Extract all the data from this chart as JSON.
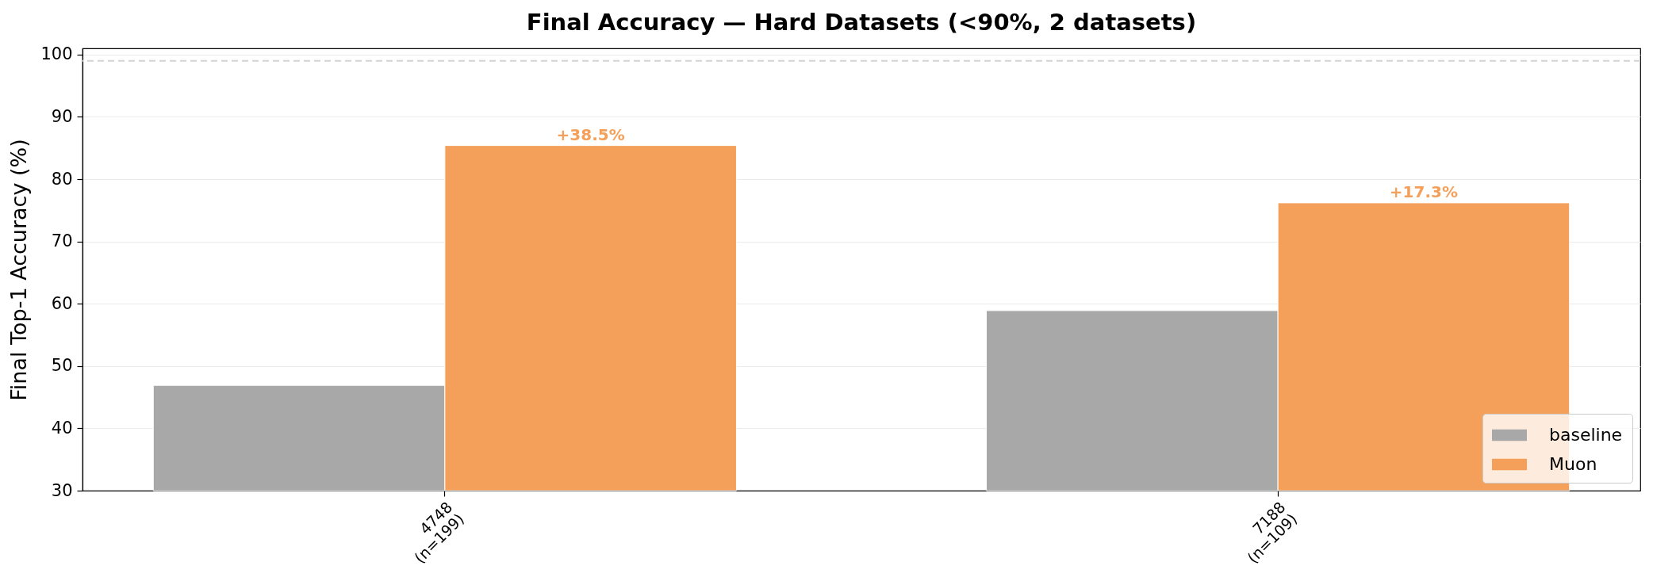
{
  "chart_data": {
    "type": "bar",
    "title": "Final Accuracy — Hard Datasets (<90%, 2 datasets)",
    "ylabel": "Final Top-1 Accuracy (%)",
    "categories": [
      "4748\n(n=199)",
      "7188\n(n=109)"
    ],
    "series": [
      {
        "name": "baseline",
        "color": "#a8a8a8",
        "values": [
          46.9,
          58.9
        ]
      },
      {
        "name": "Muon",
        "color": "#f5a05a",
        "values": [
          85.4,
          76.2
        ]
      }
    ],
    "ylim": [
      30,
      101
    ],
    "yticks": [
      30,
      40,
      50,
      60,
      70,
      80,
      90,
      100
    ],
    "grid": "y",
    "legend": "bottom right",
    "ref_lines": [
      {
        "axis": "y",
        "value": 99,
        "color": "#d3d3d3",
        "line_style": "dashed"
      }
    ],
    "annotations": [
      {
        "text": "+38.5%",
        "y": 85.4
      },
      {
        "text": "+17.3%",
        "y": 76.2
      }
    ]
  }
}
